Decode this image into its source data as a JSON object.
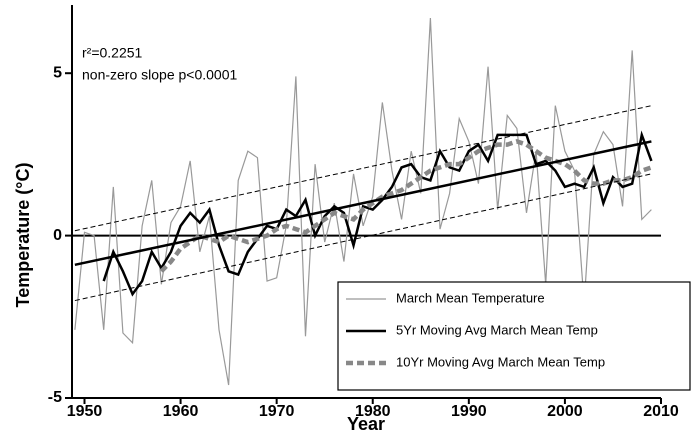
{
  "chart_data": {
    "type": "line",
    "x_label": "Year",
    "y_label": "Temperature (°C)",
    "annotations": [
      "r²=0.2251",
      "non-zero slope p<0.0001"
    ],
    "x": [
      1949,
      1950,
      1951,
      1952,
      1953,
      1954,
      1955,
      1956,
      1957,
      1958,
      1959,
      1960,
      1961,
      1962,
      1963,
      1964,
      1965,
      1966,
      1967,
      1968,
      1969,
      1970,
      1971,
      1972,
      1973,
      1974,
      1975,
      1976,
      1977,
      1978,
      1979,
      1980,
      1981,
      1982,
      1983,
      1984,
      1985,
      1986,
      1987,
      1988,
      1989,
      1990,
      1991,
      1992,
      1993,
      1994,
      1995,
      1996,
      1997,
      1998,
      1999,
      2000,
      2001,
      2002,
      2003,
      2004,
      2005,
      2006,
      2007,
      2008,
      2009
    ],
    "series": [
      {
        "name": "March Mean Temperature",
        "color": "#999999",
        "style": "thin",
        "values": [
          -2.9,
          0.1,
          0.0,
          -2.9,
          1.5,
          -3.0,
          -3.3,
          0.3,
          1.7,
          -1.5,
          0.4,
          0.9,
          2.3,
          -0.5,
          0.6,
          -2.9,
          -4.6,
          1.7,
          2.6,
          2.4,
          -1.4,
          -1.3,
          0.3,
          4.9,
          -3.1,
          2.2,
          -0.2,
          1.0,
          -0.8,
          1.9,
          0.3,
          1.2,
          4.1,
          2.0,
          0.5,
          2.6,
          1.3,
          6.7,
          0.2,
          1.3,
          3.6,
          2.9,
          1.6,
          5.2,
          0.8,
          3.7,
          3.3,
          0.7,
          2.6,
          -1.5,
          4.0,
          2.6,
          2.0,
          -2.1,
          2.5,
          3.2,
          2.8,
          0.9,
          5.7,
          0.5,
          0.8
        ]
      },
      {
        "name": "5Yr Moving Avg March Mean Temp",
        "color": "#000000",
        "style": "thick",
        "values": [
          null,
          null,
          null,
          -1.4,
          -0.5,
          -1.1,
          -1.8,
          -1.4,
          -0.5,
          -1.0,
          -0.5,
          0.3,
          0.7,
          0.4,
          0.8,
          -0.3,
          -1.1,
          -1.2,
          -0.5,
          -0.1,
          0.3,
          0.2,
          0.8,
          0.6,
          1.1,
          0.0,
          0.6,
          0.9,
          0.7,
          -0.3,
          0.9,
          0.8,
          1.1,
          1.5,
          2.1,
          2.2,
          1.8,
          1.7,
          2.6,
          2.1,
          2.0,
          2.6,
          2.8,
          2.3,
          3.1,
          3.1,
          3.1,
          3.1,
          2.2,
          2.3,
          2.0,
          1.5,
          1.6,
          1.5,
          2.1,
          1.0,
          1.8,
          1.5,
          1.6,
          3.1,
          2.3
        ]
      },
      {
        "name": "10Yr Moving Avg March Mean Temp",
        "color": "#888888",
        "style": "dashed",
        "values": [
          null,
          null,
          null,
          null,
          null,
          null,
          null,
          null,
          null,
          -1.1,
          -0.8,
          -0.4,
          -0.2,
          0.0,
          -0.1,
          -0.2,
          0.0,
          -0.1,
          -0.2,
          -0.1,
          0.0,
          0.2,
          0.3,
          0.2,
          0.1,
          0.3,
          0.5,
          0.7,
          0.6,
          0.5,
          0.8,
          1.0,
          1.2,
          1.3,
          1.4,
          1.6,
          1.8,
          2.0,
          2.1,
          2.2,
          2.2,
          2.4,
          2.6,
          2.7,
          2.8,
          2.8,
          2.9,
          2.8,
          2.6,
          2.4,
          2.3,
          2.2,
          2.0,
          1.7,
          1.6,
          1.6,
          1.7,
          1.7,
          1.8,
          2.0,
          2.1
        ]
      }
    ],
    "fit": {
      "x": [
        1949,
        2009
      ],
      "values": [
        -0.9,
        2.9
      ],
      "upper": [
        0.15,
        4.0
      ],
      "lower": [
        -2.0,
        1.9
      ]
    },
    "xlim": [
      1948.7,
      2010
    ],
    "xticks": [
      1950,
      1960,
      1970,
      1980,
      1990,
      2000,
      2010
    ],
    "ylim": [
      -5,
      7.1
    ],
    "yticks": [
      -5,
      0,
      5
    ],
    "legend": "bottom-right"
  }
}
